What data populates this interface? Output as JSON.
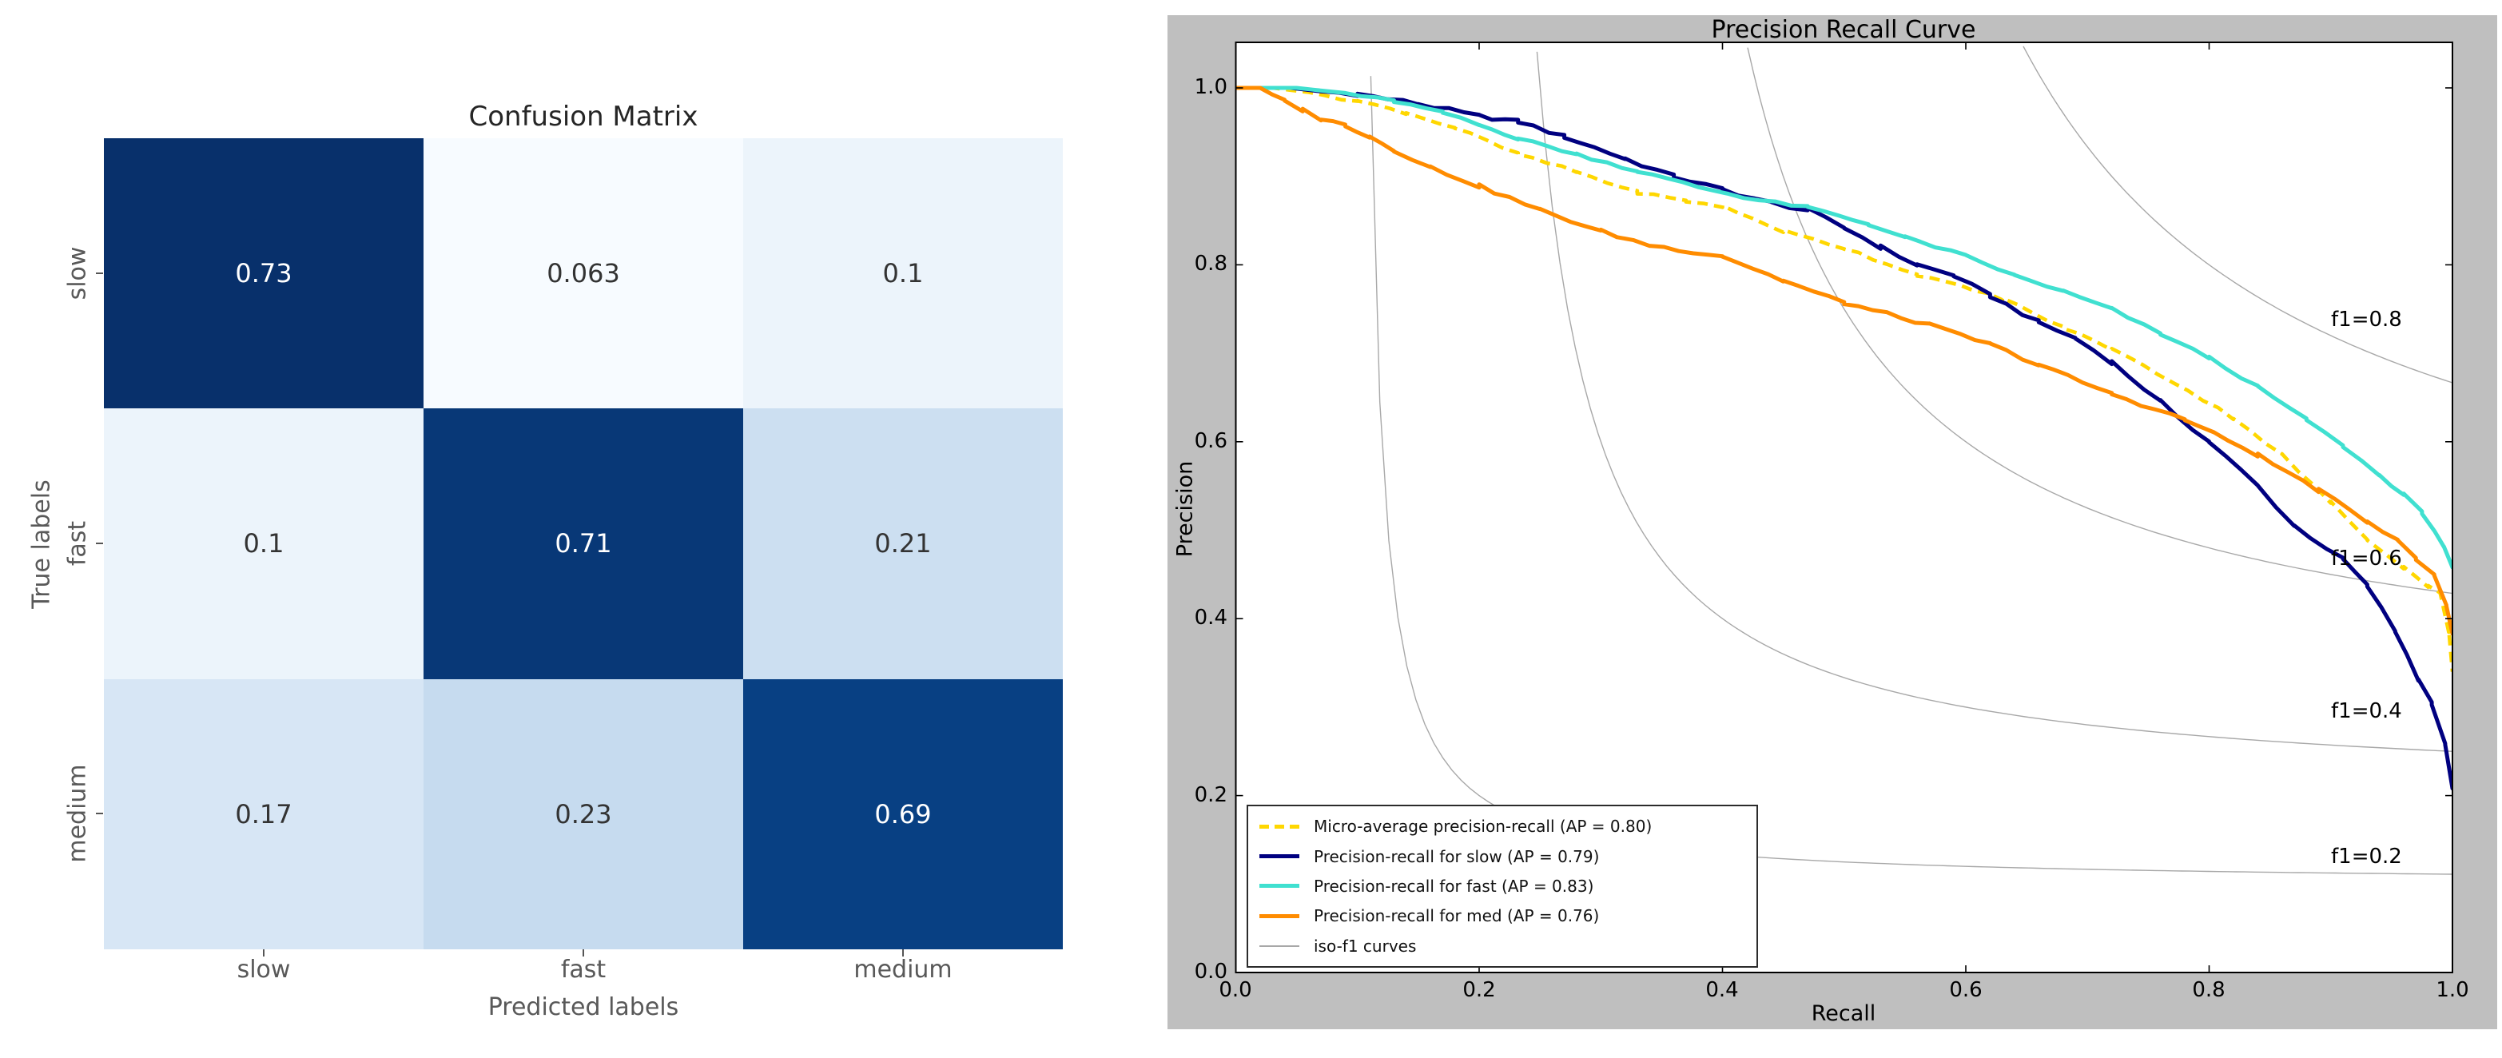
{
  "chart_data": [
    {
      "type": "heatmap",
      "title": "Confusion Matrix",
      "xlabel": "Predicted labels",
      "ylabel": "True labels",
      "colormap": "Blues",
      "x_categories": [
        "slow",
        "fast",
        "medium"
      ],
      "y_categories": [
        "slow",
        "fast",
        "medium"
      ],
      "values": [
        [
          0.73,
          0.063,
          0.1
        ],
        [
          0.1,
          0.71,
          0.21
        ],
        [
          0.17,
          0.23,
          0.69
        ]
      ],
      "cell_labels": [
        [
          "0.73",
          "0.063",
          "0.1"
        ],
        [
          "0.1",
          "0.71",
          "0.21"
        ],
        [
          "0.17",
          "0.23",
          "0.69"
        ]
      ],
      "cell_colors": [
        [
          "#08306b",
          "#f7fbff",
          "#ecf4fb"
        ],
        [
          "#ecf4fb",
          "#083877",
          "#ccdff1"
        ],
        [
          "#d7e6f5",
          "#c6dbef",
          "#084083"
        ]
      ],
      "cell_text_colors": [
        [
          "#ffffff",
          "#333333",
          "#333333"
        ],
        [
          "#333333",
          "#ffffff",
          "#333333"
        ],
        [
          "#333333",
          "#333333",
          "#ffffff"
        ]
      ]
    },
    {
      "type": "line",
      "title": "Precision Recall Curve",
      "xlabel": "Recall",
      "ylabel": "Precision",
      "xlim": [
        0.0,
        1.0
      ],
      "ylim": [
        0.0,
        1.05
      ],
      "x_tick_labels": [
        "0.0",
        "0.2",
        "0.4",
        "0.6",
        "0.8",
        "1.0"
      ],
      "y_tick_labels": [
        "0.0",
        "0.2",
        "0.4",
        "0.6",
        "0.8",
        "1.0"
      ],
      "figure_facecolor": "#bfbfbf",
      "axes_facecolor": "#ffffff",
      "legend_position": "lower left",
      "grid": false,
      "series": [
        {
          "name": "Micro-average precision-recall (AP = 0.80)",
          "ap": 0.8,
          "color": "#FFD700",
          "dash": true,
          "points": [
            [
              0,
              1.0
            ],
            [
              0.03,
              1.0
            ],
            [
              0.06,
              0.995
            ],
            [
              0.1,
              0.985
            ],
            [
              0.14,
              0.972
            ],
            [
              0.18,
              0.955
            ],
            [
              0.232,
              0.925
            ],
            [
              0.28,
              0.905
            ],
            [
              0.33,
              0.882
            ],
            [
              0.37,
              0.872
            ],
            [
              0.4,
              0.866
            ],
            [
              0.45,
              0.838
            ],
            [
              0.5,
              0.819
            ],
            [
              0.56,
              0.789
            ],
            [
              0.63,
              0.762
            ],
            [
              0.68,
              0.729
            ],
            [
              0.72,
              0.705
            ],
            [
              0.77,
              0.668
            ],
            [
              0.82,
              0.627
            ],
            [
              0.86,
              0.585
            ],
            [
              0.9,
              0.531
            ],
            [
              0.93,
              0.49
            ],
            [
              0.96,
              0.458
            ],
            [
              0.98,
              0.437
            ],
            [
              0.99,
              0.428
            ],
            [
              0.997,
              0.386
            ],
            [
              1.0,
              0.34
            ]
          ]
        },
        {
          "name": "Precision-recall for slow (AP = 0.79)",
          "ap": 0.79,
          "color": "#000080",
          "dash": false,
          "points": [
            [
              0,
              1.0
            ],
            [
              0.045,
              1.0
            ],
            [
              0.07,
              0.996
            ],
            [
              0.1,
              0.993
            ],
            [
              0.15,
              0.982
            ],
            [
              0.2,
              0.968
            ],
            [
              0.232,
              0.962
            ],
            [
              0.27,
              0.945
            ],
            [
              0.32,
              0.92
            ],
            [
              0.36,
              0.9
            ],
            [
              0.4,
              0.885
            ],
            [
              0.44,
              0.87
            ],
            [
              0.47,
              0.862
            ],
            [
              0.5,
              0.842
            ],
            [
              0.53,
              0.82
            ],
            [
              0.56,
              0.8
            ],
            [
              0.59,
              0.788
            ],
            [
              0.62,
              0.765
            ],
            [
              0.66,
              0.735
            ],
            [
              0.69,
              0.717
            ],
            [
              0.72,
              0.69
            ],
            [
              0.76,
              0.645
            ],
            [
              0.8,
              0.6
            ],
            [
              0.84,
              0.55
            ],
            [
              0.87,
              0.505
            ],
            [
              0.91,
              0.467
            ],
            [
              0.93,
              0.437
            ],
            [
              0.953,
              0.386
            ],
            [
              0.972,
              0.332
            ],
            [
              0.983,
              0.304
            ],
            [
              0.994,
              0.257
            ],
            [
              1.0,
              0.208
            ]
          ]
        },
        {
          "name": "Precision-recall for fast (AP = 0.83)",
          "ap": 0.83,
          "color": "#40E0D0",
          "dash": false,
          "points": [
            [
              0,
              1.0
            ],
            [
              0.05,
              1.0
            ],
            [
              0.09,
              0.994
            ],
            [
              0.13,
              0.985
            ],
            [
              0.17,
              0.972
            ],
            [
              0.2,
              0.958
            ],
            [
              0.232,
              0.943
            ],
            [
              0.28,
              0.925
            ],
            [
              0.33,
              0.906
            ],
            [
              0.38,
              0.888
            ],
            [
              0.43,
              0.873
            ],
            [
              0.47,
              0.865
            ],
            [
              0.52,
              0.846
            ],
            [
              0.55,
              0.831
            ],
            [
              0.6,
              0.81
            ],
            [
              0.64,
              0.788
            ],
            [
              0.68,
              0.77
            ],
            [
              0.72,
              0.75
            ],
            [
              0.76,
              0.722
            ],
            [
              0.8,
              0.695
            ],
            [
              0.84,
              0.662
            ],
            [
              0.88,
              0.625
            ],
            [
              0.91,
              0.595
            ],
            [
              0.94,
              0.562
            ],
            [
              0.96,
              0.54
            ],
            [
              0.975,
              0.52
            ],
            [
              0.985,
              0.5
            ],
            [
              0.993,
              0.48
            ],
            [
              1.0,
              0.458
            ]
          ]
        },
        {
          "name": "Precision-recall for med (AP = 0.76)",
          "ap": 0.76,
          "color": "#FF8C00",
          "dash": false,
          "points": [
            [
              0,
              1.0
            ],
            [
              0.02,
              1.0
            ],
            [
              0.04,
              0.985
            ],
            [
              0.055,
              0.975
            ],
            [
              0.07,
              0.965
            ],
            [
              0.09,
              0.958
            ],
            [
              0.11,
              0.945
            ],
            [
              0.13,
              0.93
            ],
            [
              0.16,
              0.91
            ],
            [
              0.2,
              0.889
            ],
            [
              0.25,
              0.862
            ],
            [
              0.3,
              0.838
            ],
            [
              0.34,
              0.822
            ],
            [
              0.4,
              0.81
            ],
            [
              0.45,
              0.782
            ],
            [
              0.5,
              0.757
            ],
            [
              0.57,
              0.732
            ],
            [
              0.62,
              0.71
            ],
            [
              0.66,
              0.687
            ],
            [
              0.72,
              0.654
            ],
            [
              0.78,
              0.625
            ],
            [
              0.84,
              0.585
            ],
            [
              0.89,
              0.545
            ],
            [
              0.93,
              0.51
            ],
            [
              0.955,
              0.49
            ],
            [
              0.97,
              0.467
            ],
            [
              0.985,
              0.449
            ],
            [
              0.995,
              0.415
            ],
            [
              1.0,
              0.383
            ]
          ]
        }
      ],
      "iso_f1": {
        "legend_label": "iso-f1 curves",
        "values": [
          0.2,
          0.4,
          0.6,
          0.8
        ],
        "labels": [
          "f1=0.2",
          "f1=0.4",
          "f1=0.6",
          "f1=0.8"
        ],
        "label_x": 0.9,
        "color": "#a8a8a8"
      }
    }
  ]
}
